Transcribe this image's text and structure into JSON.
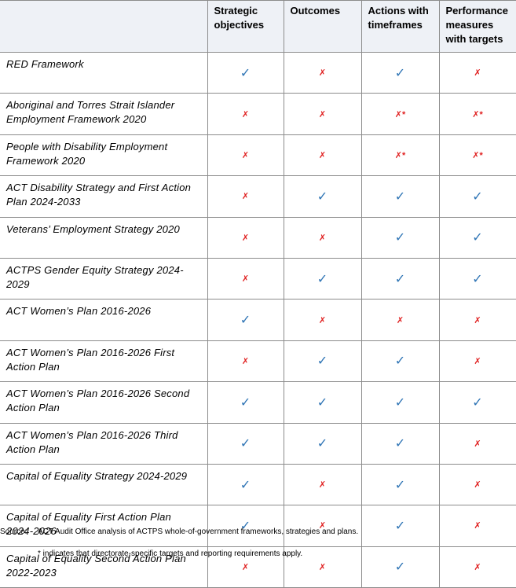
{
  "table": {
    "header": [
      "",
      "Strategic objectives",
      "Outcomes",
      "Actions with timeframes",
      "Performance measures with targets"
    ],
    "rows": [
      [
        "RED Framework",
        "✓",
        "✗",
        "✓",
        "✗"
      ],
      [
        "Aboriginal and Torres Strait Islander Employment Framework 2020",
        "✗",
        "✗",
        "✗*",
        "✗*"
      ],
      [
        "People with Disability Employment Framework 2020",
        "✗",
        "✗",
        "✗*",
        "✗*"
      ],
      [
        "ACT Disability Strategy and First Action Plan 2024-2033",
        "✗",
        "✓",
        "✓",
        "✓"
      ],
      [
        "Veterans’ Employment Strategy 2020",
        "✗",
        "✗",
        "✓",
        "✓"
      ],
      [
        "ACTPS Gender Equity Strategy 2024-2029",
        "✗",
        "✓",
        "✓",
        "✓"
      ],
      [
        "ACT Women’s Plan 2016-2026",
        "✓",
        "✗",
        "✗",
        "✗"
      ],
      [
        "ACT Women’s Plan 2016-2026 First Action Plan",
        "✗",
        "✓",
        "✓",
        "✗"
      ],
      [
        "ACT Women’s Plan 2016-2026 Second Action Plan",
        "✓",
        "✓",
        "✓",
        "✓"
      ],
      [
        "ACT Women’s Plan 2016-2026 Third Action Plan",
        "✓",
        "✓",
        "✓",
        "✗"
      ],
      [
        "Capital of Equality Strategy 2024-2029",
        "✓",
        "✗",
        "✓",
        "✗"
      ],
      [
        "Capital of Equality First Action Plan 2024-2026",
        "✓",
        "✗",
        "✓",
        "✗"
      ],
      [
        "Capital of Equality Second Action Plan 2022-2023",
        "✗",
        "✗",
        "✓",
        "✗"
      ]
    ]
  },
  "source": {
    "label": "Source:",
    "text": "ACT Audit Office analysis of ACTPS whole-of-government frameworks, strategies and plans."
  },
  "note": "* indicates that directorate-specific targets and reporting requirements apply."
}
